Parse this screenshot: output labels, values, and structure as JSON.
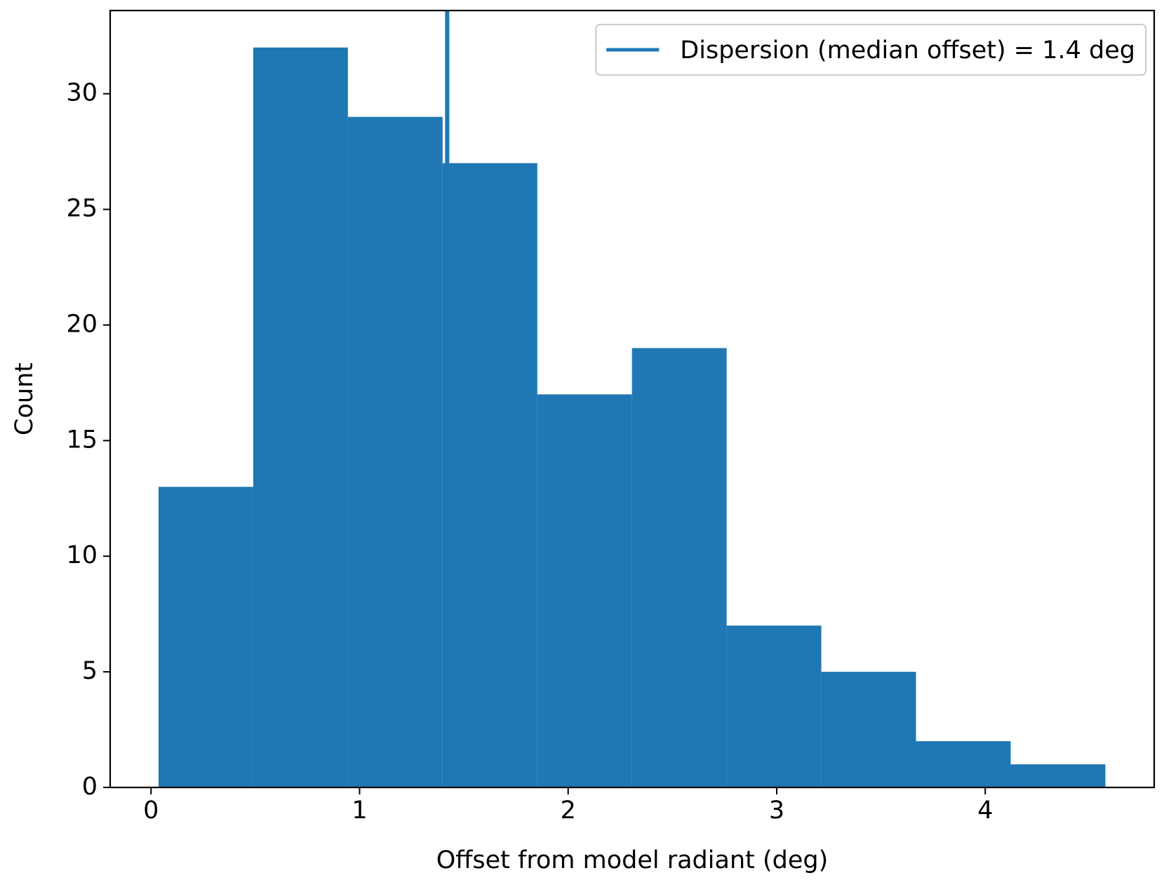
{
  "chart_data": {
    "type": "histogram",
    "x_label": "Offset from model radiant (deg)",
    "y_label": "Count",
    "bins": [
      0.036,
      0.49,
      0.944,
      1.398,
      1.852,
      2.306,
      2.76,
      3.214,
      3.668,
      4.122,
      4.576
    ],
    "counts": [
      13,
      32,
      29,
      27,
      17,
      19,
      7,
      5,
      2,
      1
    ],
    "color": "#1f77b4",
    "median_line": {
      "value": 1.42,
      "label": "Dispersion (median offset) = 1.4 deg",
      "color": "#1f77b4"
    },
    "xlim": [
      -0.196,
      4.81
    ],
    "ylim": [
      0,
      33.6
    ],
    "xticks": [
      0,
      1,
      2,
      3,
      4
    ],
    "yticks": [
      0,
      5,
      10,
      15,
      20,
      25,
      30
    ],
    "legend": "upper right",
    "grid": false
  }
}
